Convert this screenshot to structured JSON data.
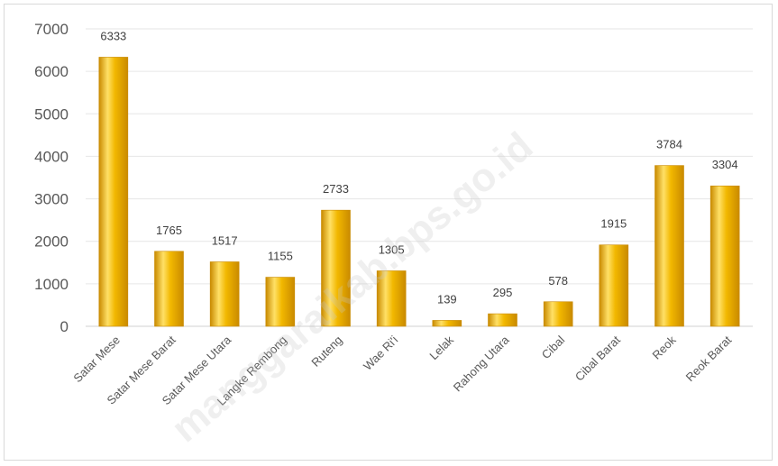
{
  "chart_data": {
    "type": "bar",
    "title": "",
    "xlabel": "",
    "ylabel": "",
    "categories": [
      "Satar Mese",
      "Satar Mese Barat",
      "Satar Mese Utara",
      "Langke Rembong",
      "Ruteng",
      "Wae Ri'i",
      "Lelak",
      "Rahong Utara",
      "Cibal",
      "Cibal Barat",
      "Reok",
      "Reok Barat"
    ],
    "values": [
      6333,
      1765,
      1517,
      1155,
      2733,
      1305,
      139,
      295,
      578,
      1915,
      3784,
      3304
    ],
    "ylim": [
      0,
      7000
    ],
    "yticks": [
      0,
      1000,
      2000,
      3000,
      4000,
      5000,
      6000,
      7000
    ],
    "grid": true,
    "legend": "none",
    "bar_color_light": "#ffe066",
    "bar_color": "#f2b800",
    "bar_color_dark": "#c98a00",
    "gridline_color": "#e6e6e6"
  },
  "watermark": "manggaraikab.bps.go.id"
}
